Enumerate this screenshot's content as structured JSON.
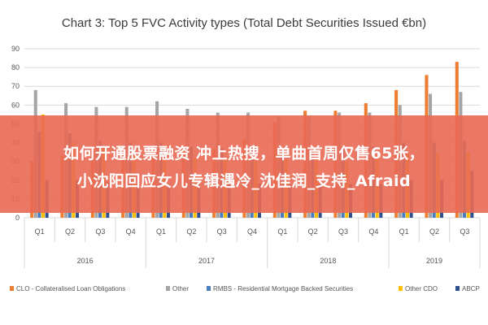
{
  "chart_data": {
    "type": "bar",
    "title": "Chart 3: Top 5 FVC Activity types (Total Debt Securities Issued €bn)",
    "ylim": [
      0,
      90
    ],
    "yticks": [
      0,
      10,
      20,
      30,
      40,
      50,
      60,
      70,
      80,
      90
    ],
    "categories": [
      "Q1",
      "Q2",
      "Q3",
      "Q4",
      "Q1",
      "Q2",
      "Q3",
      "Q4",
      "Q1",
      "Q2",
      "Q3",
      "Q4",
      "Q1",
      "Q2",
      "Q3"
    ],
    "years": [
      {
        "label": "2016",
        "start": 0,
        "end": 3
      },
      {
        "label": "2017",
        "start": 4,
        "end": 7
      },
      {
        "label": "2018",
        "start": 8,
        "end": 11
      },
      {
        "label": "2019",
        "start": 12,
        "end": 14
      }
    ],
    "grid": true,
    "legend_position": "bottom",
    "series": [
      {
        "name": "CLO - Collateralised Loan Obligations",
        "color": "#ed7d31",
        "values": [
          30,
          33,
          32,
          34,
          36,
          38,
          37,
          42,
          51,
          57,
          57,
          61,
          68,
          76,
          83
        ]
      },
      {
        "name": "Other",
        "color": "#a5a5a5",
        "values": [
          68,
          61,
          59,
          59,
          62,
          58,
          56,
          56,
          54,
          54,
          56,
          56,
          60,
          66,
          67
        ]
      },
      {
        "name": "RMBS - Residential Mortgage Backed Securities",
        "color": "#4a7ebb",
        "values": [
          46,
          45,
          41,
          40,
          40,
          38,
          37,
          37,
          36,
          36,
          38,
          38,
          40,
          40,
          41
        ]
      },
      {
        "name": "Other CDO",
        "color": "#ffc000",
        "values": [
          55,
          40,
          38,
          34,
          33,
          32,
          31,
          30,
          31,
          31,
          30,
          33,
          34,
          34,
          35
        ]
      },
      {
        "name": "ABCP",
        "color": "#2f4f8f",
        "values": [
          20,
          20,
          19,
          18,
          18,
          18,
          18,
          18,
          18,
          18,
          18,
          18,
          20,
          20,
          25
        ]
      }
    ]
  },
  "overlay": {
    "line1": "如何开通股票融资 冲上热搜，单曲首周仅售65张，",
    "line2": "小沈阳回应女儿专辑遇冷_沈佳润_支持_Afraid"
  }
}
